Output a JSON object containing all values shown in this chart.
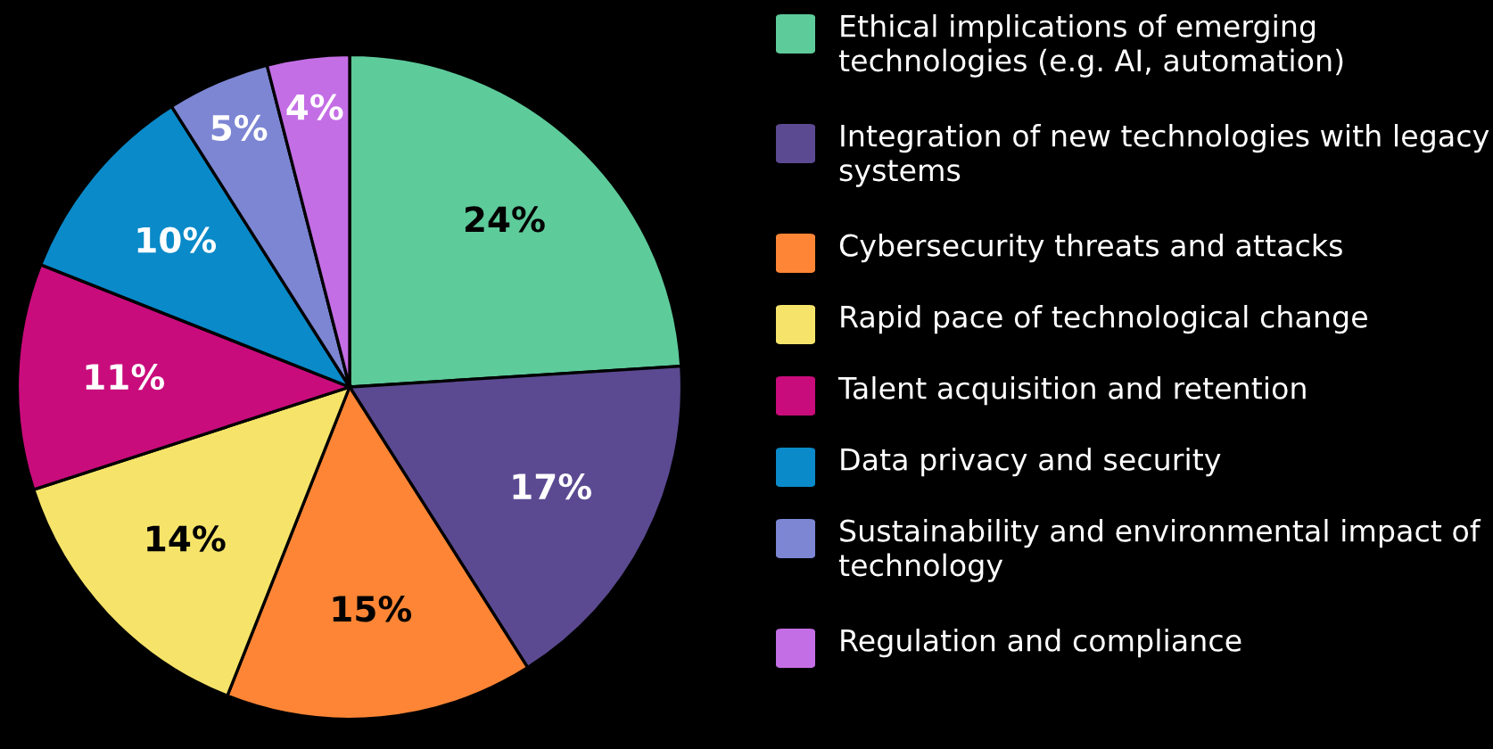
{
  "chart_data": {
    "type": "pie",
    "categories": [
      "Ethical implications of emerging technologies (e.g. AI, automation)",
      "Integration of new technologies with legacy systems",
      "Cybersecurity threats and attacks",
      "Rapid pace of technological change",
      "Talent acquisition and retention",
      "Data privacy and security",
      "Sustainability and environmental impact of technology",
      "Regulation and compliance"
    ],
    "values": [
      24,
      17,
      15,
      14,
      11,
      10,
      5,
      4
    ],
    "colors": [
      "#5ecb9b",
      "#5b4a91",
      "#fd8535",
      "#f6e46a",
      "#c90c7c",
      "#0a8ac9",
      "#7d86d3",
      "#c46ee5"
    ],
    "value_labels": [
      "24%",
      "17%",
      "15%",
      "14%",
      "11%",
      "10%",
      "5%",
      "4%"
    ],
    "legend": "right"
  }
}
